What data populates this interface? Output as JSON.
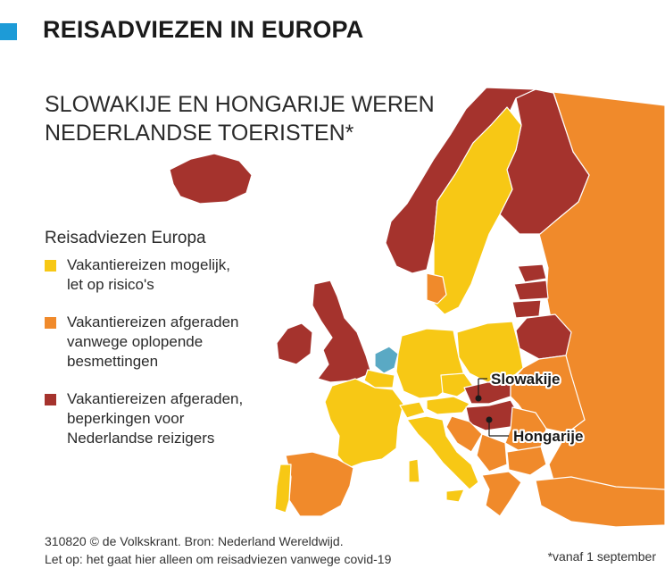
{
  "header": {
    "title": "REISADVIEZEN IN EUROPA"
  },
  "subtitle": "SLOWAKIJE EN HONGARIJE WEREN NEDERLANDSE TOERISTEN*",
  "legend": {
    "title": "Reisadviezen Europa",
    "items": [
      {
        "color": "#f7c815",
        "label": "Vakantiereizen mogelijk,\nlet op risico's"
      },
      {
        "color": "#f08a2b",
        "label": "Vakantiereizen afgeraden\nvanwege oplopende\nbesmettingen"
      },
      {
        "color": "#a5332d",
        "label": "Vakantiereizen afgeraden,\nbeperkingen voor\nNederlandse reizigers"
      }
    ]
  },
  "map": {
    "colors": {
      "yellow": "#f7c815",
      "orange": "#f08a2b",
      "red": "#a5332d",
      "netherlands": "#5aa9c4",
      "border": "#ffffff",
      "marker": "#1a1a1a"
    },
    "callouts": {
      "slowakije": "Slowakije",
      "hongarije": "Hongarije"
    }
  },
  "source": {
    "line1": "310820 © de Volkskrant. Bron: Nederland Wereldwijd.",
    "line2": "Let op: het gaat hier alleen om reisadviezen vanwege covid-19"
  },
  "footnote": "*vanaf 1 september"
}
